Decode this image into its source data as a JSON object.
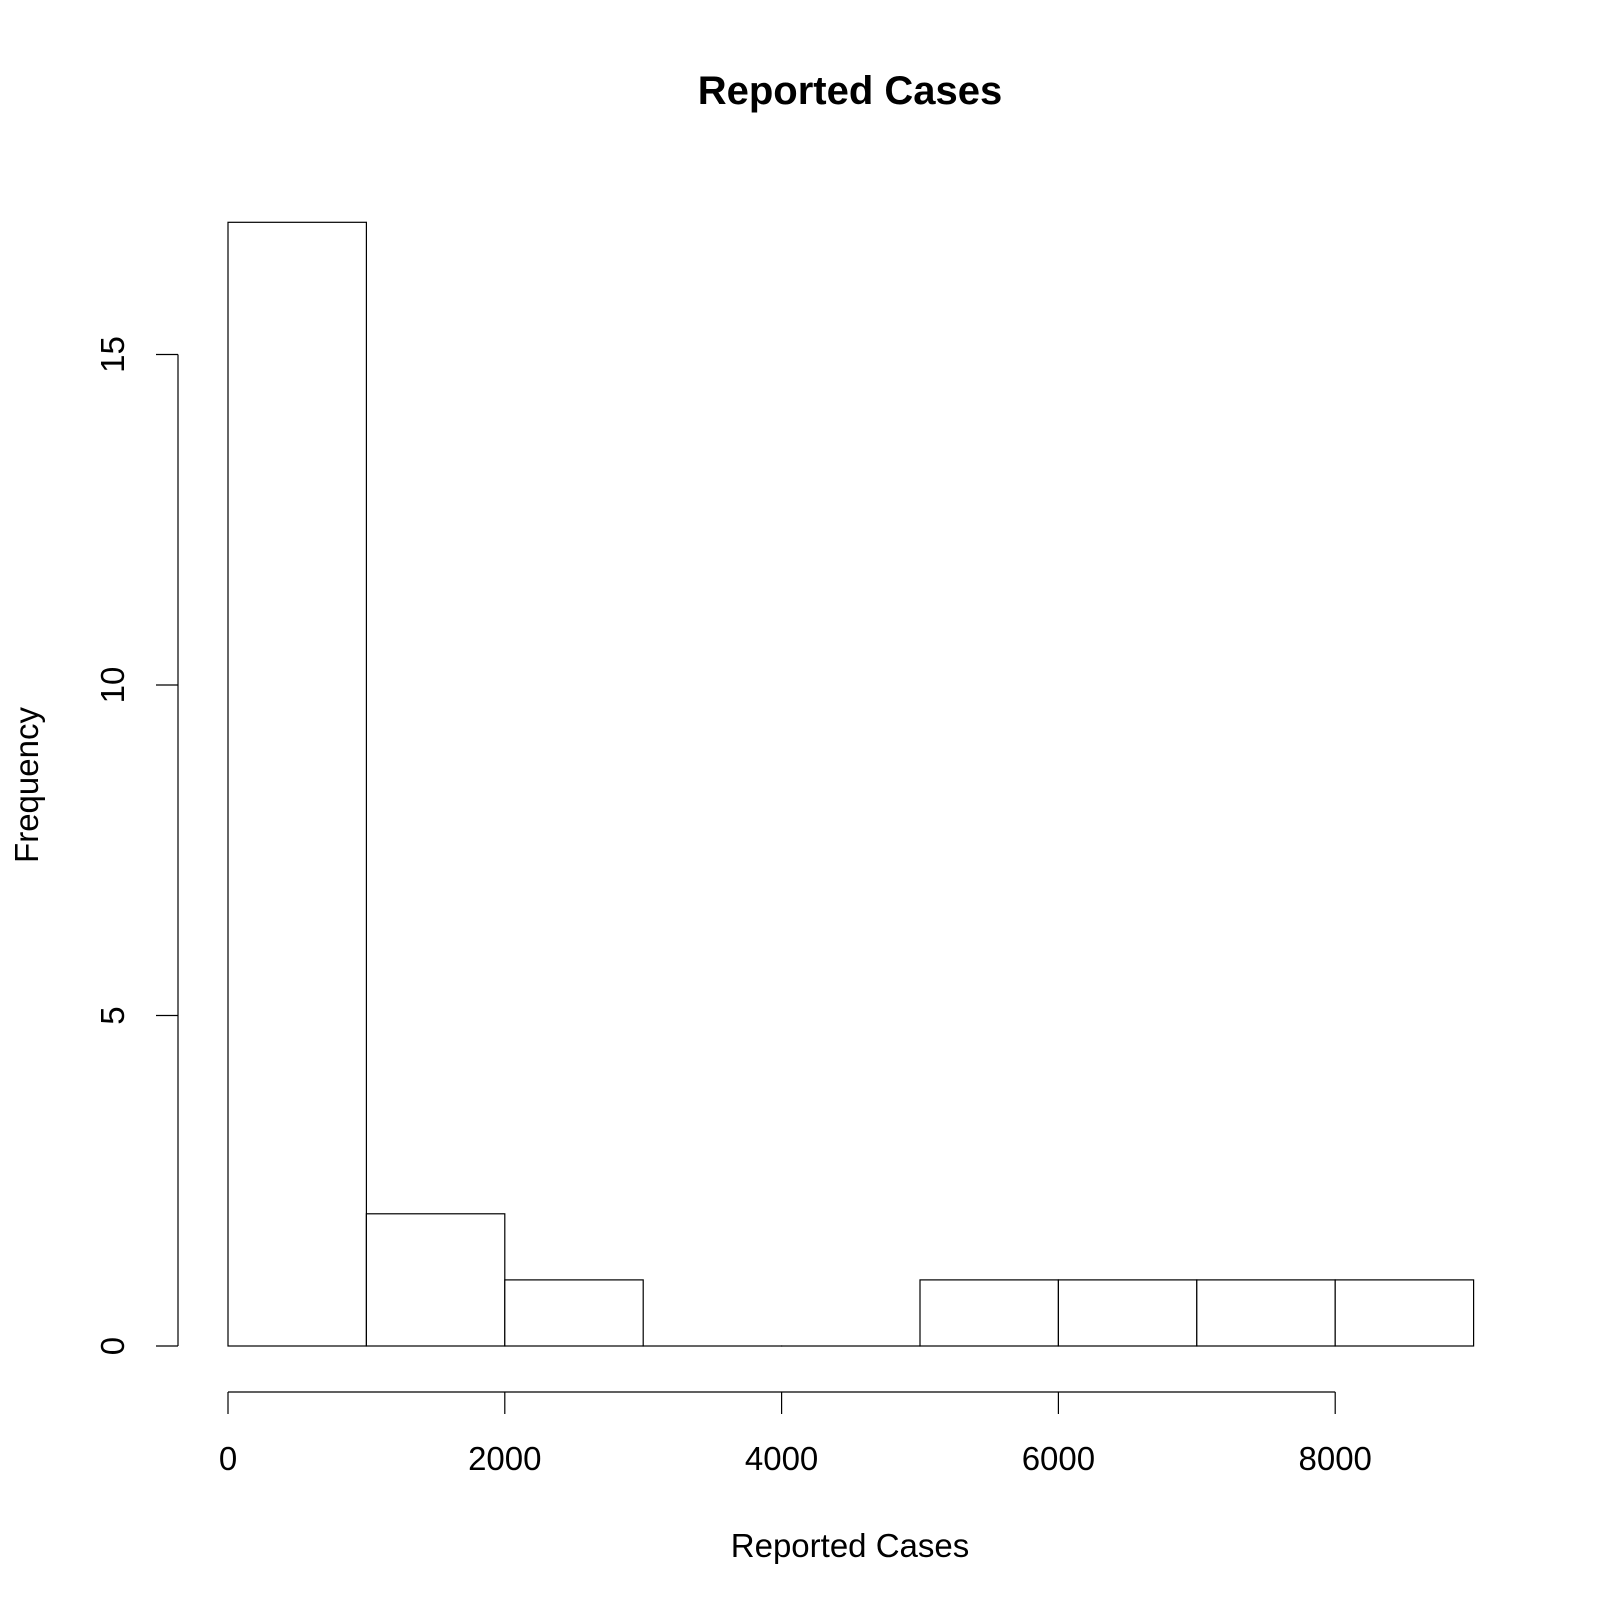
{
  "chart_data": {
    "type": "bar",
    "title": "Reported Cases",
    "xlabel": "Reported Cases",
    "ylabel": "Frequency",
    "bins": [
      {
        "start": 0,
        "end": 1000,
        "count": 17
      },
      {
        "start": 1000,
        "end": 2000,
        "count": 2
      },
      {
        "start": 2000,
        "end": 3000,
        "count": 1
      },
      {
        "start": 3000,
        "end": 4000,
        "count": 0
      },
      {
        "start": 4000,
        "end": 5000,
        "count": 0
      },
      {
        "start": 5000,
        "end": 6000,
        "count": 1
      },
      {
        "start": 6000,
        "end": 7000,
        "count": 1
      },
      {
        "start": 7000,
        "end": 8000,
        "count": 1
      },
      {
        "start": 8000,
        "end": 9000,
        "count": 1
      }
    ],
    "xlim": [
      0,
      9000
    ],
    "ylim": [
      0,
      17
    ],
    "x_ticks": [
      0,
      2000,
      4000,
      6000,
      8000
    ],
    "y_ticks": [
      0,
      5,
      10,
      15
    ],
    "x_tick_labels": [
      "0",
      "2000",
      "4000",
      "6000",
      "8000"
    ],
    "y_tick_labels": [
      "0",
      "5",
      "10",
      "15"
    ],
    "grid": false,
    "legend": "none",
    "colors": {
      "bar_fill": "#ffffff",
      "bar_stroke": "#000000"
    }
  }
}
